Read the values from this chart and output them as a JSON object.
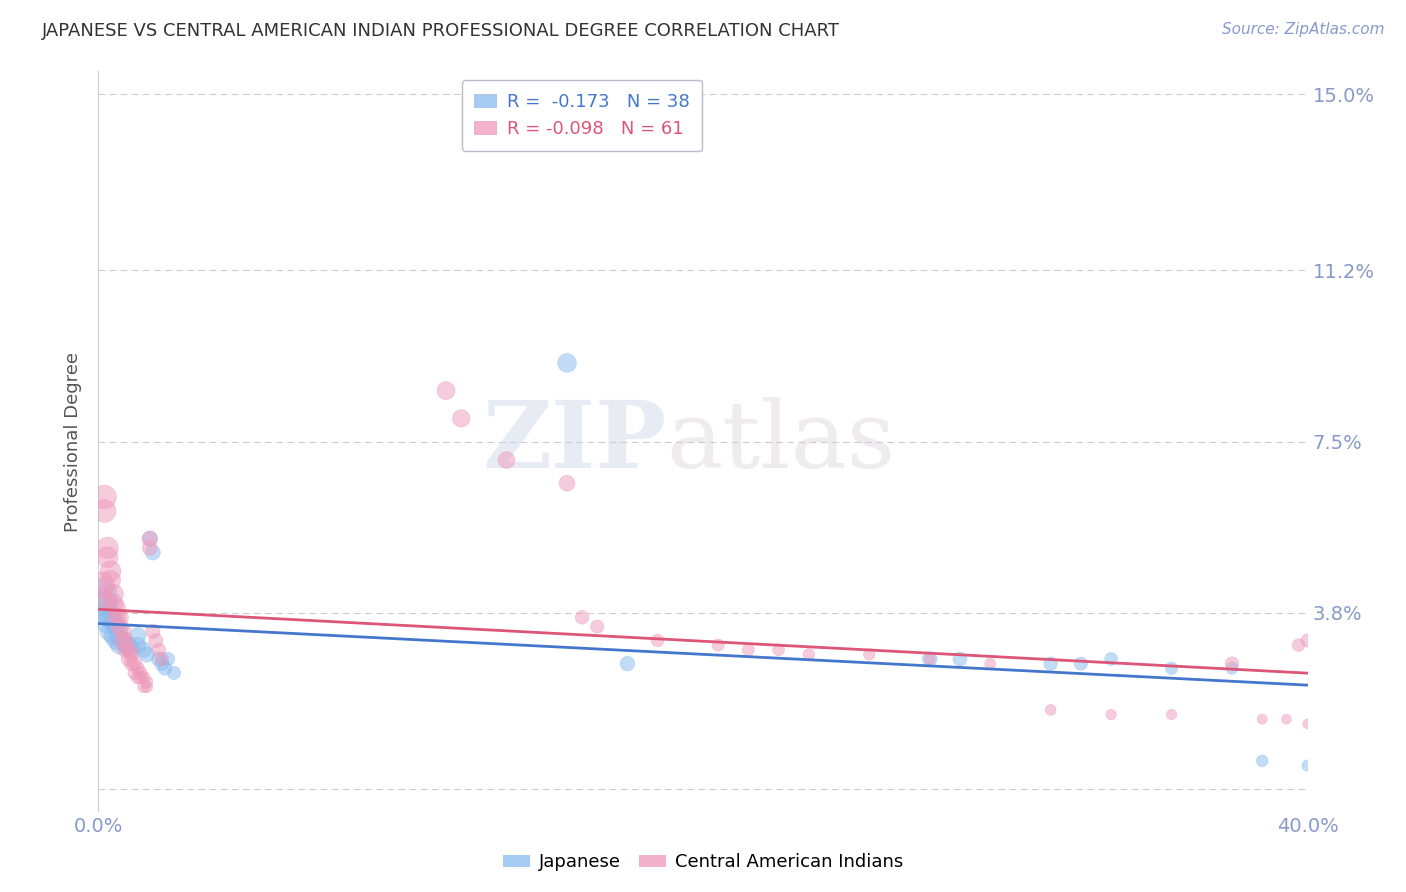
{
  "title": "JAPANESE VS CENTRAL AMERICAN INDIAN PROFESSIONAL DEGREE CORRELATION CHART",
  "source": "Source: ZipAtlas.com",
  "ylabel": "Professional Degree",
  "xlim": [
    0.0,
    0.4
  ],
  "ylim": [
    -0.005,
    0.155
  ],
  "yticks": [
    0.0,
    0.038,
    0.075,
    0.112,
    0.15
  ],
  "ytick_labels": [
    "",
    "3.8%",
    "7.5%",
    "11.2%",
    "15.0%"
  ],
  "xtick_positions": [
    0.0,
    0.4
  ],
  "xtick_labels": [
    "0.0%",
    "40.0%"
  ],
  "background_color": "#ffffff",
  "grid_color": "#cccccc",
  "title_color": "#333333",
  "axis_color": "#8899cc",
  "japanese_color": "#88bbee",
  "pink_color": "#ee99bb",
  "legend_line1": "R =  -0.173   N = 38",
  "legend_line2": "R = -0.098   N = 61",
  "legend_label1": "Japanese",
  "legend_label2": "Central American Indians",
  "blue_line_color": "#4477cc",
  "pink_line_color": "#dd5577",
  "watermark_zip": "ZIP",
  "watermark_atlas": "atlas",
  "japanese_points": [
    [
      0.001,
      0.042
    ],
    [
      0.002,
      0.04
    ],
    [
      0.003,
      0.038
    ],
    [
      0.003,
      0.036
    ],
    [
      0.004,
      0.037
    ],
    [
      0.004,
      0.034
    ],
    [
      0.005,
      0.036
    ],
    [
      0.005,
      0.033
    ],
    [
      0.006,
      0.035
    ],
    [
      0.006,
      0.032
    ],
    [
      0.007,
      0.033
    ],
    [
      0.007,
      0.031
    ],
    [
      0.008,
      0.032
    ],
    [
      0.009,
      0.031
    ],
    [
      0.01,
      0.031
    ],
    [
      0.011,
      0.03
    ],
    [
      0.013,
      0.033
    ],
    [
      0.013,
      0.031
    ],
    [
      0.015,
      0.03
    ],
    [
      0.016,
      0.029
    ],
    [
      0.017,
      0.054
    ],
    [
      0.018,
      0.051
    ],
    [
      0.02,
      0.028
    ],
    [
      0.021,
      0.027
    ],
    [
      0.022,
      0.026
    ],
    [
      0.023,
      0.028
    ],
    [
      0.025,
      0.025
    ],
    [
      0.155,
      0.092
    ],
    [
      0.175,
      0.027
    ],
    [
      0.275,
      0.028
    ],
    [
      0.285,
      0.028
    ],
    [
      0.315,
      0.027
    ],
    [
      0.325,
      0.027
    ],
    [
      0.335,
      0.028
    ],
    [
      0.355,
      0.026
    ],
    [
      0.375,
      0.026
    ],
    [
      0.385,
      0.006
    ],
    [
      0.4,
      0.005
    ]
  ],
  "japanese_sizes": [
    500,
    350,
    280,
    260,
    240,
    220,
    200,
    190,
    180,
    175,
    170,
    165,
    160,
    155,
    150,
    145,
    140,
    135,
    130,
    125,
    120,
    115,
    110,
    105,
    100,
    95,
    90,
    180,
    110,
    110,
    100,
    95,
    90,
    85,
    80,
    75,
    70,
    65
  ],
  "pink_points": [
    [
      0.001,
      0.044
    ],
    [
      0.001,
      0.041
    ],
    [
      0.002,
      0.063
    ],
    [
      0.002,
      0.06
    ],
    [
      0.003,
      0.052
    ],
    [
      0.003,
      0.05
    ],
    [
      0.004,
      0.047
    ],
    [
      0.004,
      0.045
    ],
    [
      0.005,
      0.042
    ],
    [
      0.005,
      0.04
    ],
    [
      0.006,
      0.039
    ],
    [
      0.006,
      0.037
    ],
    [
      0.007,
      0.037
    ],
    [
      0.007,
      0.035
    ],
    [
      0.008,
      0.034
    ],
    [
      0.008,
      0.032
    ],
    [
      0.009,
      0.032
    ],
    [
      0.009,
      0.03
    ],
    [
      0.01,
      0.03
    ],
    [
      0.01,
      0.028
    ],
    [
      0.011,
      0.029
    ],
    [
      0.011,
      0.027
    ],
    [
      0.012,
      0.027
    ],
    [
      0.012,
      0.025
    ],
    [
      0.013,
      0.026
    ],
    [
      0.013,
      0.024
    ],
    [
      0.014,
      0.025
    ],
    [
      0.014,
      0.024
    ],
    [
      0.015,
      0.024
    ],
    [
      0.015,
      0.022
    ],
    [
      0.016,
      0.023
    ],
    [
      0.016,
      0.022
    ],
    [
      0.017,
      0.054
    ],
    [
      0.017,
      0.052
    ],
    [
      0.018,
      0.034
    ],
    [
      0.019,
      0.032
    ],
    [
      0.02,
      0.03
    ],
    [
      0.021,
      0.028
    ],
    [
      0.115,
      0.086
    ],
    [
      0.12,
      0.08
    ],
    [
      0.135,
      0.071
    ],
    [
      0.155,
      0.066
    ],
    [
      0.16,
      0.037
    ],
    [
      0.165,
      0.035
    ],
    [
      0.185,
      0.032
    ],
    [
      0.205,
      0.031
    ],
    [
      0.215,
      0.03
    ],
    [
      0.225,
      0.03
    ],
    [
      0.235,
      0.029
    ],
    [
      0.255,
      0.029
    ],
    [
      0.275,
      0.028
    ],
    [
      0.295,
      0.027
    ],
    [
      0.315,
      0.017
    ],
    [
      0.335,
      0.016
    ],
    [
      0.355,
      0.016
    ],
    [
      0.375,
      0.027
    ],
    [
      0.385,
      0.015
    ],
    [
      0.393,
      0.015
    ],
    [
      0.397,
      0.031
    ],
    [
      0.4,
      0.032
    ],
    [
      0.4,
      0.014
    ]
  ],
  "pink_sizes": [
    350,
    310,
    290,
    270,
    240,
    230,
    220,
    210,
    200,
    185,
    170,
    165,
    160,
    155,
    145,
    140,
    130,
    125,
    120,
    115,
    110,
    105,
    100,
    95,
    90,
    87,
    85,
    83,
    80,
    77,
    75,
    72,
    120,
    115,
    108,
    103,
    95,
    90,
    165,
    155,
    145,
    130,
    95,
    90,
    82,
    78,
    75,
    72,
    70,
    68,
    65,
    62,
    60,
    57,
    55,
    95,
    52,
    50,
    82,
    90,
    48
  ]
}
